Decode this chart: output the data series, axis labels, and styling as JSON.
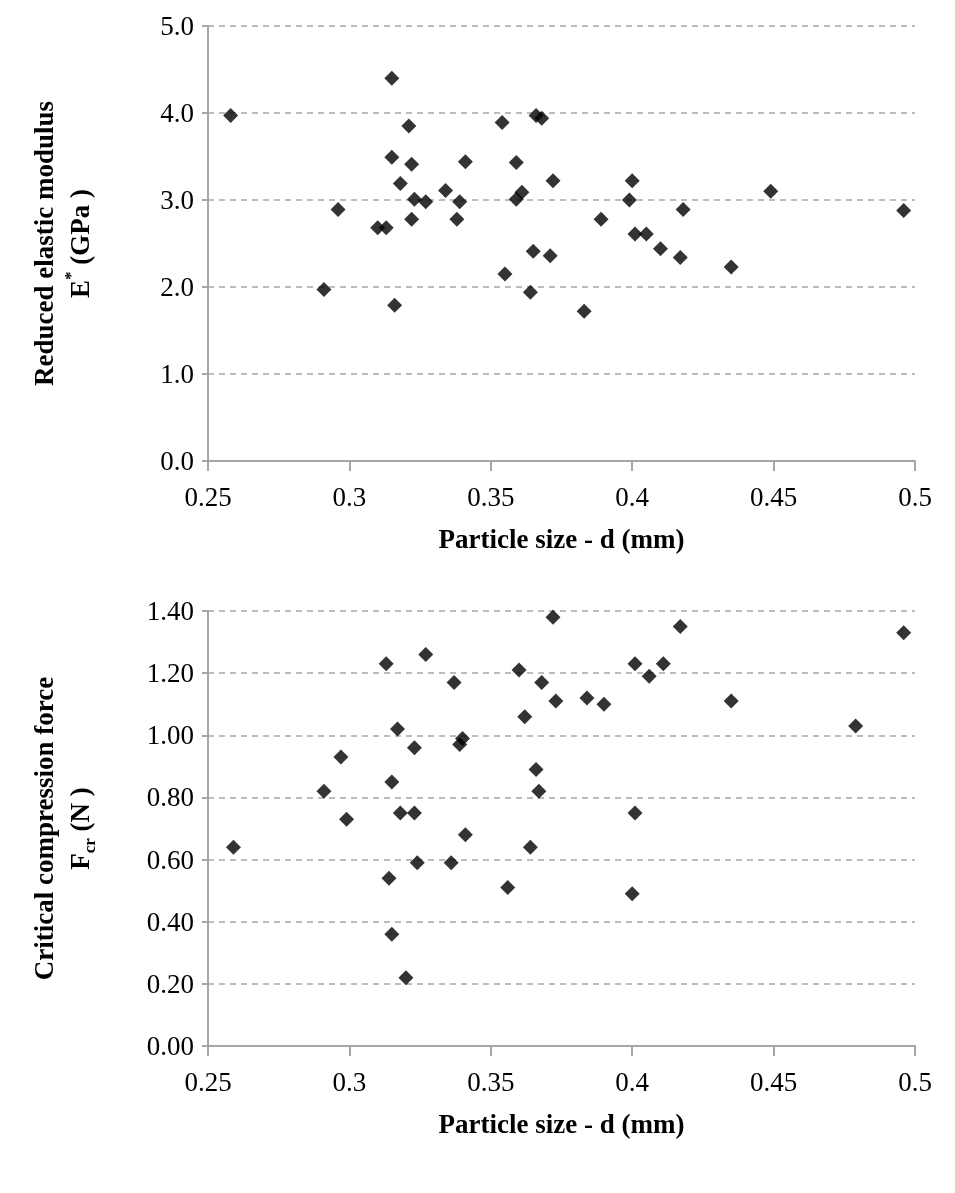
{
  "chart_data": [
    {
      "type": "scatter",
      "xlabel": "Particle size - d (mm)",
      "ylabel": "Reduced elastic modulus\nE$^{*}$ (GPa )",
      "marker": "diamond",
      "grid": "y",
      "xlim": [
        0.25,
        0.5
      ],
      "xticks": [
        0.25,
        0.3,
        0.35,
        0.4,
        0.45,
        0.5
      ],
      "ylim": [
        0,
        5
      ],
      "yticks": [
        {
          "value": 0,
          "label": "0.0"
        },
        {
          "value": 1,
          "label": "1.0"
        },
        {
          "value": 2,
          "label": "2.0"
        },
        {
          "value": 3,
          "label": "3.0"
        },
        {
          "value": 4,
          "label": "4.0"
        },
        {
          "value": 5,
          "label": "5.0"
        }
      ],
      "series": [
        {
          "color": "#000000",
          "x": [
            0.258,
            0.315,
            0.321,
            0.354,
            0.366,
            0.368,
            0.315,
            0.322,
            0.341,
            0.359,
            0.372,
            0.318,
            0.334,
            0.361,
            0.359,
            0.323,
            0.327,
            0.339,
            0.296,
            0.322,
            0.338,
            0.31,
            0.313,
            0.365,
            0.371,
            0.355,
            0.291,
            0.364,
            0.316,
            0.4,
            0.399,
            0.389,
            0.418,
            0.449,
            0.496,
            0.401,
            0.405,
            0.41,
            0.417,
            0.435,
            0.383
          ],
          "values": [
            3.97,
            4.4,
            3.85,
            3.89,
            3.97,
            3.94,
            3.49,
            3.41,
            3.44,
            3.43,
            3.22,
            3.19,
            3.11,
            3.09,
            3.01,
            3.01,
            2.98,
            2.98,
            2.89,
            2.78,
            2.78,
            2.68,
            2.68,
            2.41,
            2.36,
            2.15,
            1.97,
            1.94,
            1.79,
            3.22,
            3.0,
            2.78,
            2.89,
            3.1,
            2.88,
            2.61,
            2.61,
            2.44,
            2.34,
            2.23,
            1.72
          ]
        }
      ]
    },
    {
      "type": "scatter",
      "xlabel": "Particle size - d (mm)",
      "ylabel": "Critical compression force\nF$_{cr}$ (N )",
      "marker": "diamond",
      "grid": "y",
      "xlim": [
        0.25,
        0.5
      ],
      "xticks": [
        0.25,
        0.3,
        0.35,
        0.4,
        0.45,
        0.5
      ],
      "ylim": [
        0,
        1.4
      ],
      "yticks": [
        {
          "value": 0,
          "label": "0.00"
        },
        {
          "value": 0.2,
          "label": "0.20"
        },
        {
          "value": 0.4,
          "label": "0.40"
        },
        {
          "value": 0.6,
          "label": "0.60"
        },
        {
          "value": 0.8,
          "label": "0.80"
        },
        {
          "value": 1,
          "label": "1.00"
        },
        {
          "value": 1.2,
          "label": "1.20"
        },
        {
          "value": 1.4,
          "label": "1.40"
        }
      ],
      "series": [
        {
          "color": "#000000",
          "x": [
            0.259,
            0.291,
            0.297,
            0.299,
            0.313,
            0.314,
            0.315,
            0.315,
            0.317,
            0.318,
            0.323,
            0.323,
            0.3235,
            0.324,
            0.32,
            0.327,
            0.337,
            0.336,
            0.339,
            0.34,
            0.341,
            0.356,
            0.36,
            0.362,
            0.364,
            0.366,
            0.367,
            0.368,
            0.372,
            0.373,
            0.384,
            0.39,
            0.401,
            0.406,
            0.411,
            0.417,
            0.401,
            0.4,
            0.435,
            0.479,
            0.496
          ],
          "values": [
            0.64,
            0.82,
            0.93,
            0.73,
            1.23,
            0.54,
            0.85,
            0.36,
            1.02,
            0.75,
            0.96,
            0.75,
            null,
            0.59,
            0.22,
            1.26,
            1.17,
            0.59,
            0.97,
            0.99,
            0.68,
            0.51,
            1.21,
            1.06,
            0.64,
            0.89,
            0.82,
            1.17,
            1.38,
            1.11,
            1.12,
            1.1,
            1.23,
            1.19,
            1.23,
            1.35,
            0.75,
            0.49,
            1.11,
            1.03,
            1.33
          ]
        }
      ]
    }
  ]
}
